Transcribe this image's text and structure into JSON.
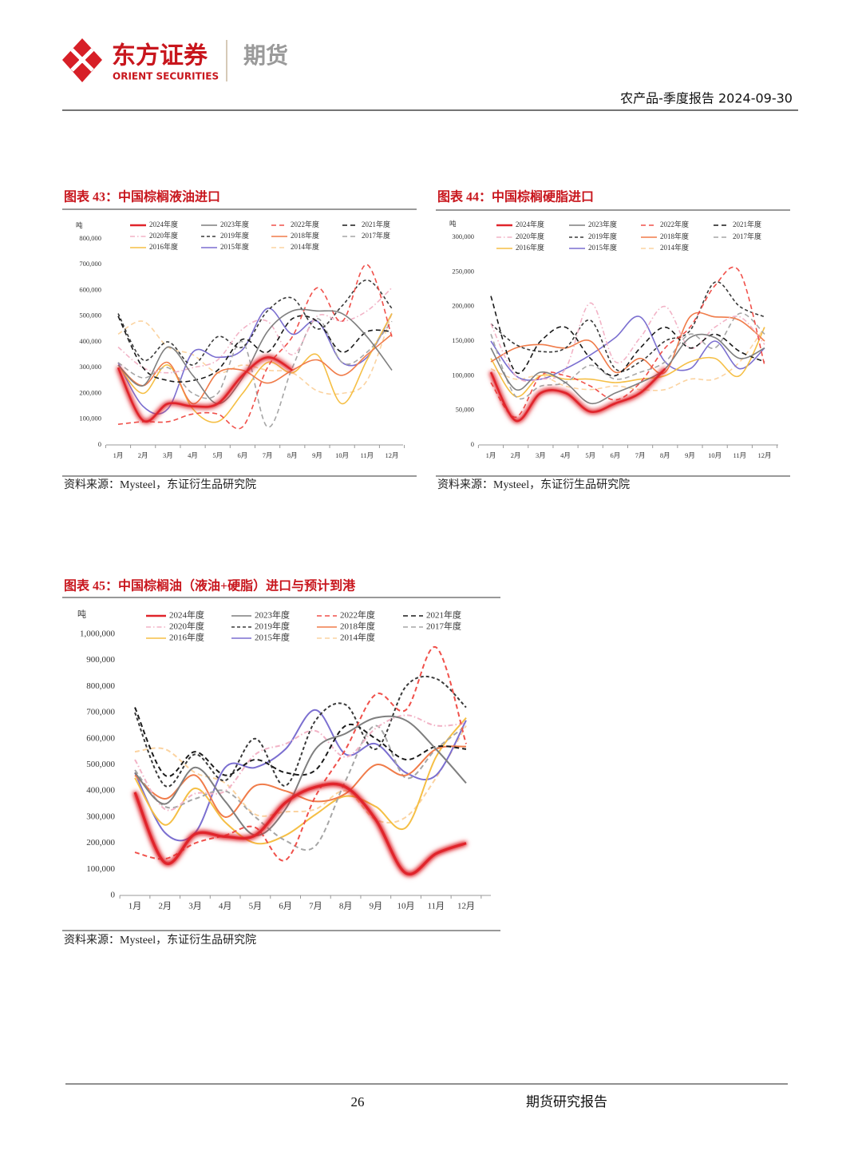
{
  "header": {
    "brand_cn": "东方证券",
    "brand_en": "ORIENT SECURITIES",
    "division": "期货",
    "report": "农产品-季度报告 2024-09-30"
  },
  "footer": {
    "page": "26",
    "label": "期货研究报告"
  },
  "chart_data": [
    {
      "type": "line",
      "title": "图表 43：中国棕榈液油进口",
      "y_label": "吨",
      "source": "资料来源：Mysteel，东证衍生品研究院",
      "categories": [
        "1月",
        "2月",
        "3月",
        "4月",
        "5月",
        "6月",
        "7月",
        "8月",
        "9月",
        "10月",
        "11月",
        "12月"
      ],
      "ylim": [
        0,
        800000
      ],
      "yticks": [
        0,
        {
          "value": 100000,
          "label": "100,000"
        },
        {
          "value": 200000,
          "label": "200,000"
        },
        {
          "value": 300000,
          "label": "300,000"
        },
        {
          "value": 400000,
          "label": "400,000"
        },
        {
          "value": 500000,
          "label": "500,000"
        },
        {
          "value": 600000,
          "label": "600,000"
        },
        {
          "value": 700000,
          "label": "700,000"
        },
        {
          "value": 800000,
          "label": "800,000"
        }
      ],
      "series": [
        {
          "name": "2024年度",
          "color": "#e0242b",
          "style": "solid",
          "highlight": true,
          "values": [
            300000,
            95000,
            160000,
            150000,
            160000,
            270000,
            340000,
            290000,
            null,
            null,
            null,
            null
          ]
        },
        {
          "name": "2023年度",
          "color": "#7f7f7f",
          "style": "solid",
          "values": [
            310000,
            230000,
            380000,
            270000,
            160000,
            260000,
            440000,
            520000,
            520000,
            510000,
            420000,
            290000
          ]
        },
        {
          "name": "2022年度",
          "color": "#f0504a",
          "style": "dashed",
          "values": [
            80000,
            90000,
            90000,
            120000,
            120000,
            70000,
            300000,
            420000,
            610000,
            480000,
            700000,
            420000
          ]
        },
        {
          "name": "2021年度",
          "color": "#1a1a1a",
          "style": "dashed",
          "values": [
            500000,
            300000,
            250000,
            250000,
            290000,
            410000,
            360000,
            490000,
            480000,
            360000,
            440000,
            440000
          ]
        },
        {
          "name": "2020年度",
          "color": "#f2b3c6",
          "style": "dashdot",
          "values": [
            380000,
            300000,
            280000,
            300000,
            330000,
            450000,
            480000,
            350000,
            500000,
            480000,
            520000,
            610000
          ]
        },
        {
          "name": "2019年度",
          "color": "#3a3a3a",
          "style": "shortdash",
          "values": [
            510000,
            330000,
            400000,
            310000,
            420000,
            380000,
            520000,
            570000,
            450000,
            540000,
            640000,
            530000
          ]
        },
        {
          "name": "2018年度",
          "color": "#f07c4a",
          "style": "solid",
          "values": [
            310000,
            230000,
            320000,
            160000,
            280000,
            290000,
            240000,
            290000,
            330000,
            270000,
            350000,
            430000
          ]
        },
        {
          "name": "2017年度",
          "color": "#a6a6a6",
          "style": "dashed",
          "values": [
            320000,
            260000,
            300000,
            200000,
            200000,
            400000,
            70000,
            300000,
            490000,
            320000,
            360000,
            480000
          ]
        },
        {
          "name": "2016年度",
          "color": "#f5bf45",
          "style": "solid",
          "values": [
            310000,
            200000,
            310000,
            140000,
            90000,
            200000,
            320000,
            280000,
            350000,
            160000,
            330000,
            510000
          ]
        },
        {
          "name": "2015年度",
          "color": "#7b6fd0",
          "style": "solid",
          "values": [
            320000,
            150000,
            140000,
            360000,
            340000,
            370000,
            530000,
            430000,
            480000,
            320000,
            340000,
            510000
          ]
        },
        {
          "name": "2014年度",
          "color": "#fbd3a0",
          "style": "dashed",
          "values": [
            430000,
            480000,
            380000,
            350000,
            280000,
            310000,
            290000,
            280000,
            210000,
            200000,
            250000,
            510000
          ]
        }
      ]
    },
    {
      "type": "line",
      "title": "图表 44：中国棕榈硬脂进口",
      "y_label": "吨",
      "source": "资料来源：Mysteel，东证衍生品研究院",
      "categories": [
        "1月",
        "2月",
        "3月",
        "4月",
        "5月",
        "6月",
        "7月",
        "8月",
        "9月",
        "10月",
        "11月",
        "12月"
      ],
      "ylim": [
        0,
        300000
      ],
      "yticks": [
        0,
        {
          "value": 50000,
          "label": "50,000"
        },
        {
          "value": 100000,
          "label": "100,000"
        },
        {
          "value": 150000,
          "label": "150,000"
        },
        {
          "value": 200000,
          "label": "200,000"
        },
        {
          "value": 250000,
          "label": "250,000"
        },
        {
          "value": 300000,
          "label": "300,000"
        }
      ],
      "series": [
        {
          "name": "2024年度",
          "color": "#e0242b",
          "style": "solid",
          "highlight": true,
          "values": [
            105000,
            35000,
            75000,
            75000,
            48000,
            60000,
            75000,
            110000,
            null,
            null,
            null,
            null
          ]
        },
        {
          "name": "2023年度",
          "color": "#7f7f7f",
          "style": "solid",
          "values": [
            140000,
            80000,
            105000,
            90000,
            60000,
            75000,
            90000,
            110000,
            155000,
            155000,
            125000,
            140000
          ]
        },
        {
          "name": "2022年度",
          "color": "#f0504a",
          "style": "dashed",
          "values": [
            90000,
            40000,
            100000,
            100000,
            85000,
            65000,
            90000,
            140000,
            170000,
            230000,
            250000,
            115000
          ]
        },
        {
          "name": "2021年度",
          "color": "#1a1a1a",
          "style": "dashed",
          "values": [
            215000,
            105000,
            150000,
            170000,
            125000,
            100000,
            140000,
            170000,
            140000,
            160000,
            135000,
            120000
          ]
        },
        {
          "name": "2020年度",
          "color": "#f2b3c6",
          "style": "dashdot",
          "values": [
            175000,
            100000,
            95000,
            110000,
            205000,
            120000,
            155000,
            200000,
            140000,
            170000,
            185000,
            145000
          ]
        },
        {
          "name": "2019年度",
          "color": "#3a3a3a",
          "style": "shortdash",
          "values": [
            175000,
            145000,
            135000,
            140000,
            180000,
            110000,
            120000,
            150000,
            165000,
            235000,
            200000,
            185000
          ]
        },
        {
          "name": "2018年度",
          "color": "#f07c4a",
          "style": "solid",
          "values": [
            120000,
            140000,
            145000,
            140000,
            150000,
            105000,
            125000,
            105000,
            185000,
            185000,
            180000,
            150000
          ]
        },
        {
          "name": "2017年度",
          "color": "#a6a6a6",
          "style": "dashed",
          "values": [
            160000,
            70000,
            85000,
            90000,
            115000,
            95000,
            105000,
            120000,
            160000,
            140000,
            190000,
            160000
          ]
        },
        {
          "name": "2016年度",
          "color": "#f5bf45",
          "style": "solid",
          "values": [
            125000,
            70000,
            100000,
            95000,
            95000,
            90000,
            95000,
            100000,
            120000,
            125000,
            100000,
            170000
          ]
        },
        {
          "name": "2015年度",
          "color": "#7b6fd0",
          "style": "solid",
          "values": [
            150000,
            100000,
            95000,
            110000,
            130000,
            155000,
            185000,
            120000,
            110000,
            150000,
            110000,
            140000
          ]
        },
        {
          "name": "2014年度",
          "color": "#fbd3a0",
          "style": "dashed",
          "values": [
            110000,
            95000,
            100000,
            85000,
            80000,
            85000,
            80000,
            80000,
            95000,
            95000,
            120000,
            170000
          ]
        }
      ]
    },
    {
      "type": "line",
      "title": "图表 45：中国棕榈油（液油+硬脂）进口与预计到港",
      "y_label": "吨",
      "source": "资料来源：Mysteel，东证衍生品研究院",
      "categories": [
        "1月",
        "2月",
        "3月",
        "4月",
        "5月",
        "6月",
        "7月",
        "8月",
        "9月",
        "10月",
        "11月",
        "12月"
      ],
      "ylim": [
        0,
        1000000
      ],
      "yticks": [
        0,
        {
          "value": 100000,
          "label": "100,000"
        },
        {
          "value": 200000,
          "label": "200,000"
        },
        {
          "value": 300000,
          "label": "300,000"
        },
        {
          "value": 400000,
          "label": "400,000"
        },
        {
          "value": 500000,
          "label": "500,000"
        },
        {
          "value": 600000,
          "label": "600,000"
        },
        {
          "value": 700000,
          "label": "700,000"
        },
        {
          "value": 800000,
          "label": "800,000"
        },
        {
          "value": 900000,
          "label": "900,000"
        },
        {
          "value": 1000000,
          "label": "1,000,000"
        }
      ],
      "series": [
        {
          "name": "2024年度",
          "color": "#e0242b",
          "style": "solid",
          "highlight": true,
          "values": [
            395000,
            125000,
            235000,
            225000,
            230000,
            355000,
            415000,
            415000,
            290000,
            85000,
            160000,
            200000
          ]
        },
        {
          "name": "2023年度",
          "color": "#7f7f7f",
          "style": "solid",
          "values": [
            470000,
            350000,
            490000,
            360000,
            230000,
            330000,
            560000,
            620000,
            680000,
            670000,
            560000,
            430000
          ]
        },
        {
          "name": "2022年度",
          "color": "#f0504a",
          "style": "dashed",
          "values": [
            165000,
            140000,
            200000,
            230000,
            260000,
            135000,
            380000,
            560000,
            770000,
            710000,
            950000,
            580000
          ]
        },
        {
          "name": "2021年度",
          "color": "#1a1a1a",
          "style": "dashed",
          "values": [
            720000,
            460000,
            550000,
            460000,
            520000,
            470000,
            480000,
            650000,
            600000,
            520000,
            570000,
            560000
          ]
        },
        {
          "name": "2020年度",
          "color": "#f2b3c6",
          "style": "dashdot",
          "values": [
            520000,
            330000,
            390000,
            400000,
            540000,
            580000,
            630000,
            530000,
            640000,
            690000,
            650000,
            660000
          ]
        },
        {
          "name": "2019年度",
          "color": "#3a3a3a",
          "style": "shortdash",
          "values": [
            700000,
            420000,
            540000,
            440000,
            600000,
            420000,
            670000,
            730000,
            560000,
            800000,
            830000,
            720000
          ]
        },
        {
          "name": "2018年度",
          "color": "#f07c4a",
          "style": "solid",
          "values": [
            460000,
            370000,
            460000,
            300000,
            420000,
            400000,
            360000,
            390000,
            500000,
            460000,
            560000,
            570000
          ]
        },
        {
          "name": "2017年度",
          "color": "#a6a6a6",
          "style": "dashed",
          "values": [
            480000,
            340000,
            370000,
            400000,
            300000,
            210000,
            190000,
            440000,
            650000,
            450000,
            560000,
            650000
          ]
        },
        {
          "name": "2016年度",
          "color": "#f5bf45",
          "style": "solid",
          "values": [
            450000,
            270000,
            410000,
            280000,
            200000,
            230000,
            310000,
            380000,
            340000,
            260000,
            530000,
            680000
          ]
        },
        {
          "name": "2015年度",
          "color": "#7b6fd0",
          "style": "solid",
          "values": [
            470000,
            240000,
            240000,
            490000,
            490000,
            560000,
            710000,
            540000,
            580000,
            470000,
            460000,
            670000
          ]
        },
        {
          "name": "2014年度",
          "color": "#fbd3a0",
          "style": "dashed",
          "values": [
            550000,
            560000,
            470000,
            430000,
            310000,
            320000,
            330000,
            400000,
            290000,
            300000,
            450000,
            650000
          ]
        }
      ]
    }
  ]
}
